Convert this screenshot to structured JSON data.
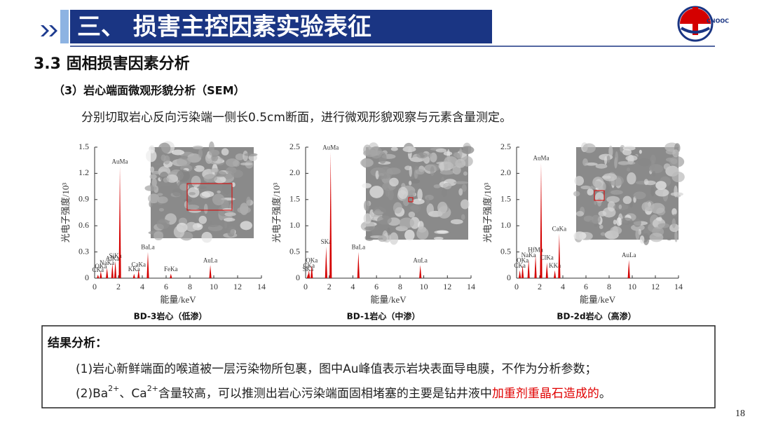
{
  "header": {
    "title": "三、 损害主控因素实验表征",
    "section": "3.3 固相损害因素分析",
    "subsection": "（3）岩心端面微观形貌分析（SEM）",
    "description": "分别切取岩心反向污染端一侧长0.5cm断面，进行微观形貌观察与元素含量测定。"
  },
  "charts": [
    {
      "type": "spectrum",
      "caption": "BD-3岩心（低渗）",
      "x_label": "能量/keV",
      "y_label": "光电子强度/10³",
      "xlim": [
        0,
        14
      ],
      "xticks": [
        0,
        2,
        4,
        6,
        8,
        10,
        12,
        14
      ],
      "ylim": [
        0,
        1.5
      ],
      "yticks": [
        0,
        0.3,
        0.6,
        0.9,
        1.2,
        1.5
      ],
      "color": "#d40000",
      "peaks": [
        {
          "label": "CKa",
          "x": 0.28,
          "y": 0.04
        },
        {
          "label": "OKa",
          "x": 0.52,
          "y": 0.08
        },
        {
          "label": "NaKa",
          "x": 1.04,
          "y": 0.12
        },
        {
          "label": "AlKa",
          "x": 1.49,
          "y": 0.17
        },
        {
          "label": "SiKa",
          "x": 1.74,
          "y": 0.2
        },
        {
          "label": "AuMa",
          "x": 2.12,
          "y": 1.28
        },
        {
          "label": "KKa",
          "x": 3.31,
          "y": 0.05
        },
        {
          "label": "CaKa",
          "x": 3.69,
          "y": 0.1
        },
        {
          "label": "BaLa",
          "x": 4.47,
          "y": 0.3
        },
        {
          "label": "FeKa",
          "x": 6.4,
          "y": 0.05
        },
        {
          "label": "AuLa",
          "x": 9.71,
          "y": 0.15
        }
      ]
    },
    {
      "type": "spectrum",
      "caption": "BD-1岩心（中渗）",
      "x_label": "能量/keV",
      "y_label": "光电子强度/10³",
      "xlim": [
        0,
        14
      ],
      "xticks": [
        0,
        2,
        4,
        6,
        8,
        10,
        12,
        14
      ],
      "ylim": [
        0,
        2.5
      ],
      "yticks": [
        0,
        0.5,
        {
          "value": 1,
          "label": "1.0"
        },
        1.5,
        {
          "value": 2,
          "label": "2.0"
        },
        2.5
      ],
      "color": "#d40000",
      "peaks": [
        {
          "label": "SKa",
          "x": 0.2,
          "y": 0.08
        },
        {
          "label": "CKa",
          "x": 0.28,
          "y": 0.15
        },
        {
          "label": "OKa",
          "x": 0.52,
          "y": 0.25
        },
        {
          "label": "SKa",
          "x": 1.74,
          "y": 0.6
        },
        {
          "label": "AuMa",
          "x": 2.12,
          "y": 2.4
        },
        {
          "label": "BaLa",
          "x": 4.47,
          "y": 0.5
        },
        {
          "label": "AuLa",
          "x": 9.71,
          "y": 0.25
        }
      ]
    },
    {
      "type": "spectrum",
      "caption": "BD-2d岩心（高渗）",
      "x_label": "能量/keV",
      "y_label": "光电子强度/10³",
      "xlim": [
        0,
        14
      ],
      "xticks": [
        0,
        2,
        4,
        6,
        8,
        10,
        12,
        14
      ],
      "ylim": [
        0,
        2.5
      ],
      "yticks": [
        0,
        0.5,
        {
          "value": 1,
          "label": "1.0"
        },
        1.5,
        {
          "value": 2,
          "label": "2.0"
        },
        2.5
      ],
      "color": "#d40000",
      "peaks": [
        {
          "label": "CKa",
          "x": 0.28,
          "y": 0.15
        },
        {
          "label": "OKa",
          "x": 0.52,
          "y": 0.25
        },
        {
          "label": "NaKa",
          "x": 1.04,
          "y": 0.35
        },
        {
          "label": "HfMa",
          "x": 1.64,
          "y": 0.45
        },
        {
          "label": "AuMa",
          "x": 2.12,
          "y": 2.2
        },
        {
          "label": "ClKa",
          "x": 2.62,
          "y": 0.3
        },
        {
          "label": "KKa",
          "x": 3.31,
          "y": 0.15
        },
        {
          "label": "CaKa",
          "x": 3.69,
          "y": 0.85
        },
        {
          "label": "AuLa",
          "x": 9.71,
          "y": 0.35
        }
      ]
    }
  ],
  "results": {
    "title": "结果分析：",
    "item1": "(1)岩心新鲜端面的喉道被一层污染物所包裹，图中Au峰值表示岩块表面导电膜，不作为分析参数；",
    "item2": [
      "(2)Ba",
      "2+",
      "、Ca",
      "2+",
      "含量较高，可以推测出岩心污染端面固相堵塞的主要是钻井液中",
      "加重剂重晶石造成的",
      "。"
    ]
  },
  "page_number": 18
}
